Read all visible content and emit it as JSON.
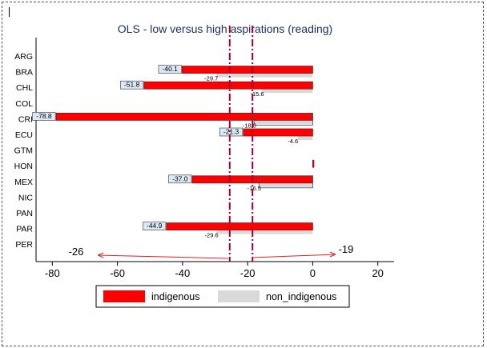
{
  "chart_data": {
    "type": "bar",
    "orientation": "horizontal",
    "title": "OLS - low versus high aspirations (reading)",
    "xlabel": "",
    "ylabel": "",
    "xlim": [
      -85,
      25
    ],
    "xticks": [
      -80,
      -60,
      -40,
      -20,
      0,
      20
    ],
    "xtick_labels": [
      "-80",
      "-60",
      "-40",
      "-20",
      "0",
      "20"
    ],
    "categories": [
      "ARG",
      "BRA",
      "CHL",
      "COL",
      "CRI",
      "ECU",
      "GTM",
      "HON",
      "MEX",
      "NIC",
      "PAN",
      "PAR",
      "PER"
    ],
    "series": [
      {
        "name": "indigenous",
        "color": "#ff0000",
        "values": [
          null,
          -40.1,
          -51.8,
          null,
          -78.8,
          -21.3,
          null,
          0.3,
          -37.0,
          null,
          null,
          -44.9,
          null
        ],
        "labels": [
          null,
          "-40.1",
          "-51.8",
          null,
          "-78.8",
          "-21.3",
          null,
          null,
          "-37.0",
          null,
          null,
          "-44.9",
          null
        ]
      },
      {
        "name": "non_indigenous",
        "color": "#d9d9d9",
        "values": [
          null,
          -29.7,
          -15.6,
          null,
          -18.0,
          -4.6,
          null,
          null,
          -16.5,
          null,
          null,
          -29.6,
          null
        ],
        "labels": [
          null,
          "-29.7",
          "-15.6",
          null,
          "-18.0",
          "-4.6",
          null,
          null,
          "-16.5",
          null,
          null,
          "-29.6",
          null
        ]
      }
    ],
    "reference_lines": [
      {
        "x": -25.5,
        "style": "dash-dot",
        "color": "#a00030"
      },
      {
        "x": -18.5,
        "style": "dash-dot",
        "color": "#a00030"
      }
    ],
    "annotations": [
      {
        "text": "-26",
        "arrow_from": -26,
        "arrow_to": -66
      },
      {
        "text": "-19",
        "arrow_from": -18.5,
        "arrow_to": 7
      }
    ],
    "legend": {
      "placement": "bottom",
      "entries": [
        {
          "label": "indigenous",
          "color": "#ff0000"
        },
        {
          "label": "non_indigenous",
          "color": "#d9d9d9"
        }
      ]
    },
    "grid": false
  }
}
